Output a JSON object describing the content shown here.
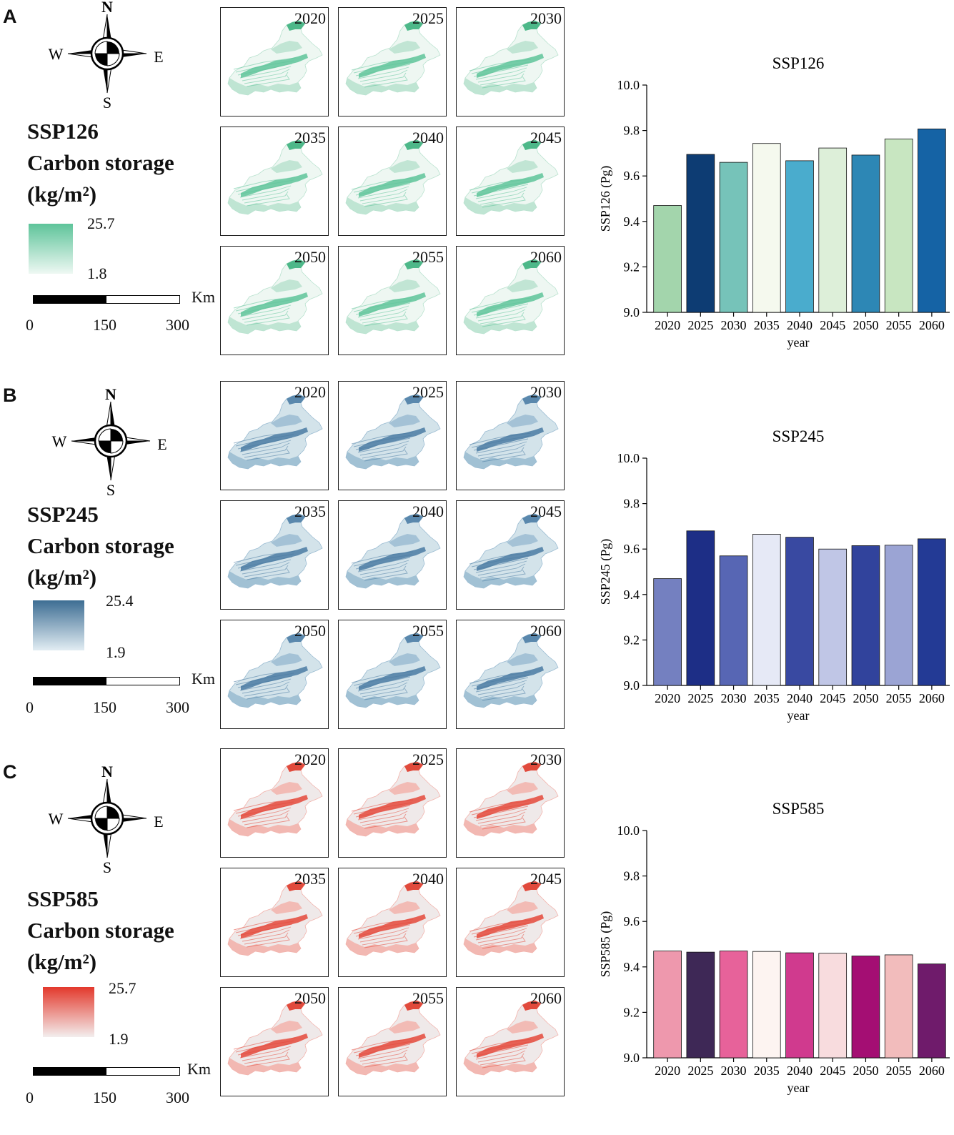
{
  "common": {
    "compass": {
      "n": "N",
      "s": "S",
      "w": "W",
      "e": "E"
    },
    "title_line2": "Carbon storage",
    "title_line3": "(kg/m²)",
    "scale": {
      "unit": "Km",
      "ticks": [
        "0",
        "150",
        "300"
      ]
    },
    "years": [
      "2020",
      "2025",
      "2030",
      "2035",
      "2040",
      "2045",
      "2050",
      "2055",
      "2060"
    ]
  },
  "panels": [
    {
      "letter": "A",
      "scenario": "SSP126",
      "legend": {
        "max": "25.7",
        "min": "1.8",
        "color_top": "#5ec49a",
        "color_bottom": "#eef8f3"
      },
      "map_colors": {
        "base": "#eef7f2",
        "mid": "#b9e2cf",
        "dark": "#5ec49a",
        "north": "#4db889"
      }
    },
    {
      "letter": "B",
      "scenario": "SSP245",
      "legend": {
        "max": "25.4",
        "min": "1.9",
        "color_top": "#3d6d93",
        "color_bottom": "#e2edf3"
      },
      "map_colors": {
        "base": "#d3e3ea",
        "mid": "#9bbcd2",
        "dark": "#4a7ba3",
        "north": "#5a88ad"
      }
    },
    {
      "letter": "C",
      "scenario": "SSP585",
      "legend": {
        "max": "25.7",
        "min": "1.9",
        "color_top": "#e3392c",
        "color_bottom": "#f3eeee"
      },
      "map_colors": {
        "base": "#efe9e9",
        "mid": "#f2b3ac",
        "dark": "#e4493b",
        "north": "#e14a3c"
      }
    }
  ],
  "chart_data": [
    {
      "type": "bar",
      "title": "SSP126",
      "xlabel": "year",
      "ylabel": "SSP126 (Pg)",
      "ylim": [
        9.0,
        10.0
      ],
      "yticks": [
        "9.0",
        "9.2",
        "9.4",
        "9.6",
        "9.8",
        "10.0"
      ],
      "categories": [
        "2020",
        "2025",
        "2030",
        "2035",
        "2040",
        "2045",
        "2050",
        "2055",
        "2060"
      ],
      "values": [
        9.47,
        9.695,
        9.66,
        9.743,
        9.667,
        9.723,
        9.692,
        9.763,
        9.807
      ],
      "colors": [
        "#a3d5ac",
        "#0d3c73",
        "#76c3b9",
        "#f5f9ee",
        "#4aaccd",
        "#ddefd9",
        "#2d87b5",
        "#c8e6c1",
        "#1563a5"
      ]
    },
    {
      "type": "bar",
      "title": "SSP245",
      "xlabel": "year",
      "ylabel": "SSP245 (Pg)",
      "ylim": [
        9.0,
        10.0
      ],
      "yticks": [
        "9.0",
        "9.2",
        "9.4",
        "9.6",
        "9.8",
        "10.0"
      ],
      "categories": [
        "2020",
        "2025",
        "2030",
        "2035",
        "2040",
        "2045",
        "2050",
        "2055",
        "2060"
      ],
      "values": [
        9.47,
        9.68,
        9.57,
        9.665,
        9.652,
        9.6,
        9.615,
        9.617,
        9.645
      ],
      "colors": [
        "#7480c0",
        "#1d2e86",
        "#5766b4",
        "#e6e9f6",
        "#3949a1",
        "#c0c6e6",
        "#31439c",
        "#9ba4d4",
        "#233a95"
      ]
    },
    {
      "type": "bar",
      "title": "SSP585",
      "xlabel": "year",
      "ylabel": "SSP585 (Pg)",
      "ylim": [
        9.0,
        10.0
      ],
      "yticks": [
        "9.0",
        "9.2",
        "9.4",
        "9.6",
        "9.8",
        "10.0"
      ],
      "categories": [
        "2020",
        "2025",
        "2030",
        "2035",
        "2040",
        "2045",
        "2050",
        "2055",
        "2060"
      ],
      "values": [
        9.47,
        9.465,
        9.47,
        9.468,
        9.462,
        9.46,
        9.448,
        9.453,
        9.413
      ],
      "colors": [
        "#ee98ad",
        "#3e2856",
        "#e7629a",
        "#fdf4f1",
        "#d03a8e",
        "#f8dcde",
        "#a40e73",
        "#f2bcbc",
        "#6f1b6b"
      ]
    }
  ]
}
